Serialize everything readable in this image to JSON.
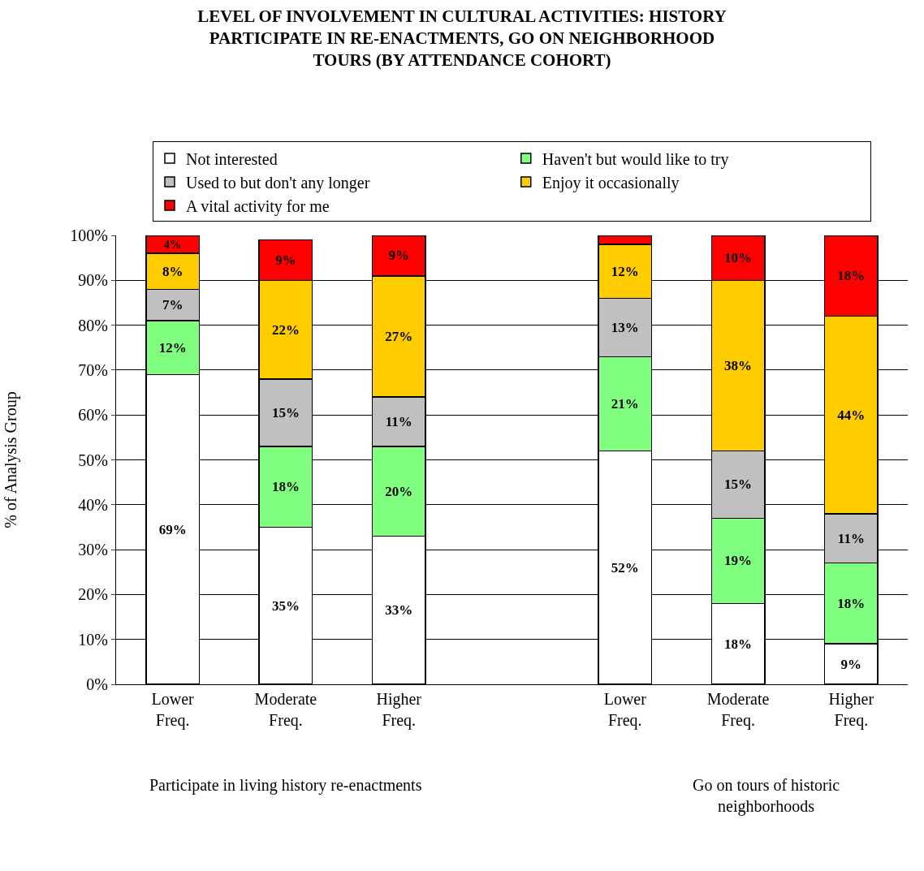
{
  "chart_data": {
    "type": "bar",
    "stacked": true,
    "title": "LEVEL OF INVOLVEMENT IN CULTURAL ACTIVITIES: HISTORY\nPARTICIPATE IN RE-ENACTMENTS, GO ON NEIGHBORHOOD\nTOURS (BY ATTENDANCE COHORT)",
    "ylabel": "% of Analysis Group",
    "categories": [
      "Lower\nFreq.",
      "Moderate\nFreq.",
      "Higher\nFreq.",
      null,
      "Lower\nFreq.",
      "Moderate\nFreq.",
      "Higher\nFreq."
    ],
    "annotations": [
      "Participate in living history re-enactments",
      "Go on tours of historic\nneighborhoods"
    ],
    "ylim": [
      0,
      100
    ],
    "yticks": [
      {
        "value": 0,
        "label": "0%"
      },
      {
        "value": 10,
        "label": "10%"
      },
      {
        "value": 20,
        "label": "20%"
      },
      {
        "value": 30,
        "label": "30%"
      },
      {
        "value": 40,
        "label": "40%"
      },
      {
        "value": 50,
        "label": "50%"
      },
      {
        "value": 60,
        "label": "60%"
      },
      {
        "value": 70,
        "label": "70%"
      },
      {
        "value": 80,
        "label": "80%"
      },
      {
        "value": 90,
        "label": "90%"
      },
      {
        "value": 100,
        "label": "100%"
      }
    ],
    "grid": "y",
    "legend": "top",
    "series": [
      {
        "name": "Not interested",
        "color": "#ffffff",
        "values": [
          69,
          35,
          33,
          null,
          52,
          18,
          9
        ],
        "value_labels": [
          "69%",
          "35%",
          "33%",
          null,
          "52%",
          "18%",
          "9%"
        ]
      },
      {
        "name": "Haven't but would like to try",
        "color": "#80ff80",
        "values": [
          12,
          18,
          20,
          null,
          21,
          19,
          18
        ],
        "value_labels": [
          "12%",
          "18%",
          "20%",
          null,
          "21%",
          "19%",
          "18%"
        ]
      },
      {
        "name": "Used to but don't any longer",
        "color": "#c0c0c0",
        "values": [
          7,
          15,
          11,
          null,
          13,
          15,
          11
        ],
        "value_labels": [
          "7%",
          "15%",
          "11%",
          null,
          "13%",
          "15%",
          "11%"
        ]
      },
      {
        "name": "Enjoy it occasionally",
        "color": "#ffcc00",
        "values": [
          8,
          22,
          27,
          null,
          12,
          38,
          44
        ],
        "value_labels": [
          "8%",
          "22%",
          "27%",
          null,
          "12%",
          "38%",
          "44%"
        ]
      },
      {
        "name": "A vital activity for me",
        "color": "#ff0000",
        "values": [
          4,
          9,
          9,
          null,
          2,
          10,
          18
        ],
        "value_labels": [
          "4%",
          "9%",
          "9%",
          null,
          null,
          "10%",
          "18%"
        ]
      }
    ]
  }
}
